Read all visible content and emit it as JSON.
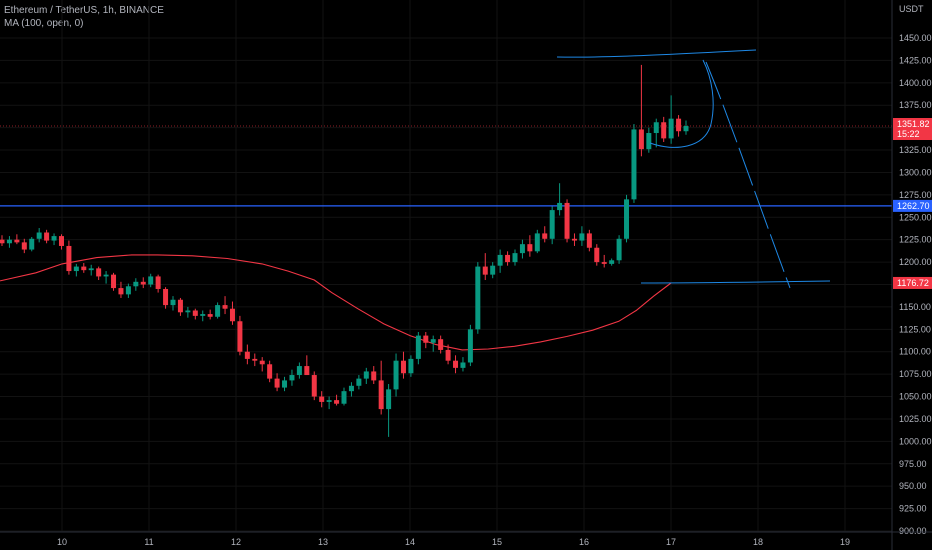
{
  "legend": {
    "symbol_line": "Ethereum / TetherUS, 1h, BINANCE",
    "ma_line": "MA (100, open, 0)"
  },
  "chart_data": {
    "type": "candlestick",
    "currency": "USDT",
    "ylim": [
      900,
      1475
    ],
    "y_ticks": [
      900,
      925,
      950,
      975,
      1000,
      1025,
      1050,
      1075,
      1100,
      1125,
      1150,
      1175,
      1200,
      1225,
      1250,
      1275,
      1300,
      1325,
      1350,
      1375,
      1400,
      1425,
      1450
    ],
    "x_ticks": [
      "10",
      "11",
      "12",
      "13",
      "14",
      "15",
      "16",
      "17",
      "18",
      "19"
    ],
    "price_tags": [
      {
        "label": "1351.82",
        "sub": "15:22",
        "value": 1351.82,
        "color": "#f23645"
      },
      {
        "label": "1262.70",
        "sub": "",
        "value": 1262.7,
        "color": "#2962ff"
      },
      {
        "label": "1176.72",
        "sub": "",
        "value": 1176.72,
        "color": "#f23645"
      }
    ],
    "horizontal_line": {
      "value": 1262.7,
      "color": "#2962ff"
    },
    "moving_average": {
      "name": "MA (100, open, 0)",
      "color": "#f23645",
      "points": [
        [
          9.4,
          1179
        ],
        [
          9.7,
          1188
        ],
        [
          10.0,
          1198
        ],
        [
          10.4,
          1205
        ],
        [
          10.8,
          1208
        ],
        [
          11.1,
          1208
        ],
        [
          11.5,
          1207
        ],
        [
          11.9,
          1204
        ],
        [
          12.3,
          1198
        ],
        [
          12.6,
          1190
        ],
        [
          12.9,
          1180
        ],
        [
          13.1,
          1166
        ],
        [
          13.4,
          1148
        ],
        [
          13.7,
          1131
        ],
        [
          14.0,
          1118
        ],
        [
          14.3,
          1108
        ],
        [
          14.6,
          1102
        ],
        [
          14.9,
          1103
        ],
        [
          15.2,
          1106
        ],
        [
          15.5,
          1111
        ],
        [
          15.8,
          1117
        ],
        [
          16.1,
          1124
        ],
        [
          16.4,
          1134
        ],
        [
          16.6,
          1146
        ],
        [
          16.8,
          1162
        ],
        [
          17.0,
          1176.72
        ]
      ]
    },
    "candles_ohlc": [
      [
        1225,
        1230,
        1218,
        1221
      ],
      [
        1221,
        1229,
        1216,
        1225
      ],
      [
        1225,
        1231,
        1220,
        1222
      ],
      [
        1222,
        1226,
        1210,
        1214
      ],
      [
        1214,
        1228,
        1212,
        1226
      ],
      [
        1226,
        1238,
        1222,
        1233
      ],
      [
        1233,
        1236,
        1221,
        1224
      ],
      [
        1224,
        1232,
        1219,
        1229
      ],
      [
        1229,
        1231,
        1214,
        1218
      ],
      [
        1218,
        1224,
        1186,
        1190
      ],
      [
        1190,
        1198,
        1184,
        1195
      ],
      [
        1195,
        1199,
        1188,
        1191
      ],
      [
        1191,
        1197,
        1185,
        1193
      ],
      [
        1193,
        1195,
        1180,
        1184
      ],
      [
        1184,
        1190,
        1176,
        1186
      ],
      [
        1186,
        1188,
        1168,
        1171
      ],
      [
        1171,
        1178,
        1160,
        1164
      ],
      [
        1164,
        1176,
        1160,
        1173
      ],
      [
        1173,
        1182,
        1168,
        1178
      ],
      [
        1178,
        1183,
        1171,
        1175
      ],
      [
        1175,
        1187,
        1172,
        1184
      ],
      [
        1184,
        1186,
        1166,
        1170
      ],
      [
        1170,
        1172,
        1148,
        1152
      ],
      [
        1152,
        1162,
        1146,
        1158
      ],
      [
        1158,
        1160,
        1140,
        1144
      ],
      [
        1144,
        1150,
        1138,
        1146
      ],
      [
        1146,
        1148,
        1136,
        1140
      ],
      [
        1140,
        1146,
        1134,
        1142
      ],
      [
        1142,
        1147,
        1136,
        1139
      ],
      [
        1139,
        1155,
        1137,
        1152
      ],
      [
        1152,
        1162,
        1142,
        1148
      ],
      [
        1148,
        1156,
        1130,
        1134
      ],
      [
        1134,
        1140,
        1096,
        1100
      ],
      [
        1100,
        1108,
        1086,
        1092
      ],
      [
        1092,
        1098,
        1084,
        1090
      ],
      [
        1090,
        1094,
        1078,
        1086
      ],
      [
        1086,
        1090,
        1066,
        1070
      ],
      [
        1070,
        1076,
        1056,
        1060
      ],
      [
        1060,
        1072,
        1056,
        1068
      ],
      [
        1068,
        1080,
        1062,
        1074
      ],
      [
        1074,
        1088,
        1070,
        1084
      ],
      [
        1084,
        1096,
        1080,
        1074
      ],
      [
        1074,
        1078,
        1046,
        1050
      ],
      [
        1050,
        1056,
        1038,
        1044
      ],
      [
        1044,
        1050,
        1036,
        1046
      ],
      [
        1046,
        1052,
        1040,
        1042
      ],
      [
        1042,
        1060,
        1040,
        1056
      ],
      [
        1056,
        1066,
        1050,
        1062
      ],
      [
        1062,
        1074,
        1058,
        1070
      ],
      [
        1070,
        1082,
        1064,
        1078
      ],
      [
        1078,
        1084,
        1064,
        1068
      ],
      [
        1068,
        1090,
        1030,
        1036
      ],
      [
        1036,
        1064,
        1005,
        1058
      ],
      [
        1058,
        1098,
        1050,
        1090
      ],
      [
        1090,
        1100,
        1070,
        1076
      ],
      [
        1076,
        1096,
        1072,
        1092
      ],
      [
        1092,
        1122,
        1086,
        1118
      ],
      [
        1118,
        1122,
        1104,
        1110
      ],
      [
        1110,
        1118,
        1100,
        1114
      ],
      [
        1114,
        1118,
        1098,
        1102
      ],
      [
        1102,
        1108,
        1086,
        1090
      ],
      [
        1090,
        1096,
        1076,
        1082
      ],
      [
        1082,
        1094,
        1078,
        1088
      ],
      [
        1088,
        1130,
        1084,
        1125
      ],
      [
        1125,
        1200,
        1120,
        1195
      ],
      [
        1195,
        1210,
        1180,
        1186
      ],
      [
        1186,
        1200,
        1182,
        1196
      ],
      [
        1196,
        1214,
        1188,
        1208
      ],
      [
        1208,
        1212,
        1196,
        1200
      ],
      [
        1200,
        1214,
        1196,
        1210
      ],
      [
        1210,
        1225,
        1204,
        1220
      ],
      [
        1220,
        1230,
        1206,
        1212
      ],
      [
        1212,
        1236,
        1210,
        1232
      ],
      [
        1232,
        1240,
        1222,
        1226
      ],
      [
        1226,
        1262,
        1220,
        1258
      ],
      [
        1258,
        1288,
        1252,
        1266
      ],
      [
        1266,
        1270,
        1222,
        1226
      ],
      [
        1226,
        1232,
        1218,
        1224
      ],
      [
        1224,
        1240,
        1218,
        1232
      ],
      [
        1232,
        1236,
        1212,
        1216
      ],
      [
        1216,
        1220,
        1196,
        1200
      ],
      [
        1200,
        1208,
        1194,
        1198
      ],
      [
        1198,
        1204,
        1196,
        1202
      ],
      [
        1202,
        1230,
        1198,
        1226
      ],
      [
        1226,
        1275,
        1222,
        1270
      ],
      [
        1270,
        1354,
        1266,
        1348
      ],
      [
        1348,
        1420,
        1318,
        1326
      ],
      [
        1326,
        1350,
        1322,
        1344
      ],
      [
        1344,
        1360,
        1328,
        1356
      ],
      [
        1356,
        1362,
        1334,
        1338
      ],
      [
        1338,
        1386,
        1332,
        1360
      ],
      [
        1360,
        1364,
        1340,
        1346
      ],
      [
        1346,
        1358,
        1342,
        1351.82
      ]
    ]
  }
}
